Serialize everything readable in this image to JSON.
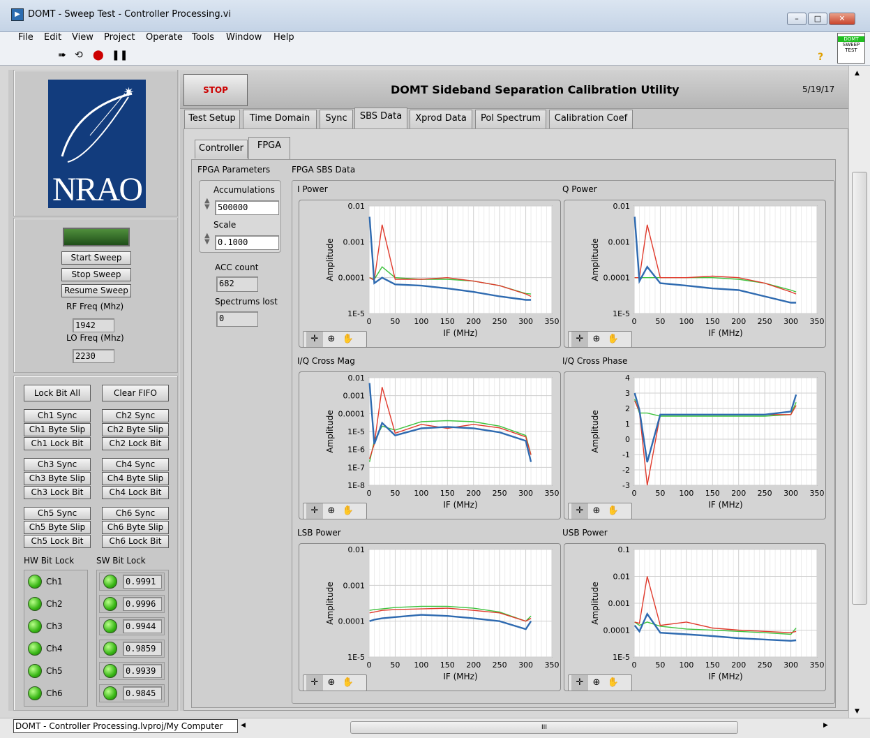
{
  "window": {
    "title": "DOMT - Sweep Test - Controller Processing.vi",
    "controls": [
      "–",
      "□",
      "✕"
    ]
  },
  "menu": [
    "File",
    "Edit",
    "View",
    "Project",
    "Operate",
    "Tools",
    "Window",
    "Help"
  ],
  "toolbar": {
    "icons": [
      "run-arrow-icon",
      "run-continuous-icon",
      "abort-icon",
      "pause-icon"
    ],
    "vi_badge": [
      "DOMT",
      "SWEEP",
      "TEST"
    ],
    "help": "?"
  },
  "header": {
    "stop_label": "STOP",
    "app_title": "DOMT Sideband Separation Calibration Utility",
    "date": "5/19/17"
  },
  "tabs": [
    "Test Setup",
    "Time Domain",
    "Sync",
    "SBS Data",
    "Xprod Data",
    "Pol Spectrum",
    "Calibration Coef"
  ],
  "active_tab": "SBS Data",
  "subtabs": [
    "Controller",
    "FPGA"
  ],
  "active_subtab": "FPGA",
  "logo": {
    "text": "NRAO"
  },
  "sweep": {
    "buttons": [
      "Start Sweep",
      "Stop Sweep",
      "Resume Sweep"
    ],
    "rf_label": "RF Freq (Mhz)",
    "rf_value": "1942",
    "lo_label": "LO Freq (Mhz)",
    "lo_value": "2230"
  },
  "controls": {
    "lock_bit_all": "Lock Bit All",
    "clear_fifo": "Clear FIFO",
    "groups": [
      [
        "Ch1 Sync",
        "Ch1 Byte Slip",
        "Ch1 Lock Bit"
      ],
      [
        "Ch2 Sync",
        "Ch2 Byte Slip",
        "Ch2 Lock Bit"
      ],
      [
        "Ch3 Sync",
        "Ch3 Byte Slip",
        "Ch3 Lock Bit"
      ],
      [
        "Ch4 Sync",
        "Ch4 Byte Slip",
        "Ch4 Lock Bit"
      ],
      [
        "Ch5 Sync",
        "Ch5 Byte Slip",
        "Ch5 Lock Bit"
      ],
      [
        "Ch6 Sync",
        "Ch6 Byte Slip",
        "Ch6 Lock Bit"
      ]
    ],
    "hw_label": "HW Bit Lock",
    "sw_label": "SW Bit Lock",
    "hw_channels": [
      "Ch1",
      "Ch2",
      "Ch3",
      "Ch4",
      "Ch5",
      "Ch6"
    ],
    "sw_values": [
      "0.9991",
      "0.9996",
      "0.9944",
      "0.9859",
      "0.9939",
      "0.9845"
    ]
  },
  "fpga_params": {
    "title": "FPGA Parameters",
    "accum_label": "Accumulations",
    "accum_value": "500000",
    "scale_label": "Scale",
    "scale_value": "0.1000",
    "acc_count_label": "ACC count",
    "acc_count_value": "682",
    "lost_label": "Spectrums lost",
    "lost_value": "0"
  },
  "sbs_title": "FPGA SBS Data",
  "graph_tools": [
    "cursor-icon",
    "zoom-icon",
    "pan-hand-icon"
  ],
  "chart_data": [
    {
      "type": "line",
      "title": "I Power",
      "xlabel": "IF (MHz)",
      "ylabel": "Amplitude",
      "log_y": true,
      "xlim": [
        0,
        350
      ],
      "ylim": [
        1e-05,
        0.01
      ],
      "xticks": [
        "0",
        "50",
        "100",
        "150",
        "200",
        "250",
        "300",
        "350"
      ],
      "yticks": [
        "0.01",
        "0.001",
        "0.0001",
        "1E-5"
      ],
      "x": [
        1,
        10,
        25,
        50,
        100,
        150,
        200,
        250,
        300,
        310
      ],
      "series": [
        {
          "color": "#2e6ab0",
          "values": [
            0.005,
            7e-05,
            0.0001,
            6.5e-05,
            6e-05,
            5e-05,
            4e-05,
            3e-05,
            2.4e-05,
            2.4e-05
          ]
        },
        {
          "color": "#e03a2c",
          "values": [
            0.0001,
            8.5e-05,
            0.003,
            9e-05,
            9e-05,
            0.0001,
            8e-05,
            6e-05,
            3.5e-05,
            3e-05
          ]
        },
        {
          "color": "#3cc23c",
          "values": [
            0.0001,
            9e-05,
            0.0002,
            0.0001,
            9e-05,
            9e-05,
            8e-05,
            6e-05,
            3.6e-05,
            3.5e-05
          ]
        }
      ],
      "grid": true
    },
    {
      "type": "line",
      "title": "Q Power",
      "xlabel": "IF (MHz)",
      "ylabel": "Amplitude",
      "log_y": true,
      "xlim": [
        0,
        350
      ],
      "ylim": [
        1e-05,
        0.01
      ],
      "xticks": [
        "0",
        "50",
        "100",
        "150",
        "200",
        "250",
        "300",
        "350"
      ],
      "yticks": [
        "0.01",
        "0.001",
        "0.0001",
        "1E-5"
      ],
      "x": [
        1,
        10,
        25,
        50,
        100,
        150,
        200,
        250,
        300,
        310
      ],
      "series": [
        {
          "color": "#2e6ab0",
          "values": [
            0.005,
            8e-05,
            0.0002,
            7e-05,
            6e-05,
            5e-05,
            4.5e-05,
            3e-05,
            2e-05,
            2e-05
          ]
        },
        {
          "color": "#e03a2c",
          "values": [
            0.0001,
            0.0001,
            0.003,
            0.0001,
            0.0001,
            0.00011,
            0.0001,
            7e-05,
            4e-05,
            3.5e-05
          ]
        },
        {
          "color": "#3cc23c",
          "values": [
            0.0001,
            0.0001,
            0.0001,
            0.0001,
            0.0001,
            0.0001,
            9e-05,
            7e-05,
            4.5e-05,
            4e-05
          ]
        }
      ],
      "grid": true
    },
    {
      "type": "line",
      "title": "I/Q Cross Mag",
      "xlabel": "IF (MHz)",
      "ylabel": "Amplitude",
      "log_y": true,
      "xlim": [
        0,
        350
      ],
      "ylim": [
        1e-08,
        0.01
      ],
      "xticks": [
        "0",
        "50",
        "100",
        "150",
        "200",
        "250",
        "300",
        "350"
      ],
      "yticks": [
        "0.01",
        "0.001",
        "0.0001",
        "1E-5",
        "1E-6",
        "1E-7",
        "1E-8"
      ],
      "x": [
        1,
        10,
        25,
        50,
        100,
        150,
        200,
        250,
        300,
        310
      ],
      "series": [
        {
          "color": "#2e6ab0",
          "values": [
            0.005,
            2e-06,
            3e-05,
            6e-06,
            1.5e-05,
            1.8e-05,
            1.5e-05,
            9e-06,
            3e-06,
            2e-07
          ]
        },
        {
          "color": "#e03a2c",
          "values": [
            3e-07,
            2e-06,
            0.003,
            8e-06,
            2.5e-05,
            1.5e-05,
            2.5e-05,
            1.6e-05,
            5e-06,
            5e-07
          ]
        },
        {
          "color": "#3cc23c",
          "values": [
            2e-07,
            3e-06,
            2e-05,
            1.2e-05,
            3.5e-05,
            4e-05,
            3.5e-05,
            2e-05,
            6e-06,
            5e-07
          ]
        }
      ],
      "grid": true
    },
    {
      "type": "line",
      "title": "I/Q Cross Phase",
      "xlabel": "IF (MHz)",
      "ylabel": "Amplitude",
      "log_y": false,
      "xlim": [
        0,
        350
      ],
      "ylim": [
        -3,
        4
      ],
      "xticks": [
        "0",
        "50",
        "100",
        "150",
        "200",
        "250",
        "300",
        "350"
      ],
      "yticks": [
        "4",
        "3",
        "2",
        "1",
        "0",
        "-1",
        "-2",
        "-3"
      ],
      "x": [
        1,
        10,
        25,
        50,
        100,
        150,
        200,
        250,
        300,
        310
      ],
      "series": [
        {
          "color": "#2e6ab0",
          "values": [
            3,
            1.9,
            -1.5,
            1.6,
            1.6,
            1.6,
            1.6,
            1.6,
            1.8,
            2.9
          ]
        },
        {
          "color": "#e03a2c",
          "values": [
            2.5,
            1.8,
            -3,
            1.6,
            1.6,
            1.6,
            1.6,
            1.6,
            1.6,
            2.2
          ]
        },
        {
          "color": "#3cc23c",
          "values": [
            2.6,
            1.7,
            1.7,
            1.5,
            1.5,
            1.5,
            1.5,
            1.5,
            1.6,
            2.4
          ]
        }
      ],
      "grid": true
    },
    {
      "type": "line",
      "title": "LSB Power",
      "xlabel": "IF (MHz)",
      "ylabel": "Amplitude",
      "log_y": true,
      "xlim": [
        0,
        350
      ],
      "ylim": [
        1e-05,
        0.01
      ],
      "xticks": [
        "0",
        "50",
        "100",
        "150",
        "200",
        "250",
        "300",
        "350"
      ],
      "yticks": [
        "0.01",
        "0.001",
        "0.0001",
        "1E-5"
      ],
      "x": [
        1,
        10,
        25,
        50,
        100,
        150,
        200,
        250,
        300,
        310
      ],
      "series": [
        {
          "color": "#2e6ab0",
          "values": [
            0.0001,
            0.00011,
            0.00012,
            0.00013,
            0.00015,
            0.00014,
            0.00012,
            0.0001,
            6e-05,
            0.0001
          ]
        },
        {
          "color": "#e03a2c",
          "values": [
            0.00017,
            0.00018,
            0.0002,
            0.00021,
            0.00022,
            0.00023,
            0.0002,
            0.00017,
            0.0001,
            0.00012
          ]
        },
        {
          "color": "#3cc23c",
          "values": [
            0.0002,
            0.00021,
            0.00022,
            0.00024,
            0.00026,
            0.00026,
            0.00023,
            0.00018,
            0.0001,
            0.00014
          ]
        }
      ],
      "grid": true
    },
    {
      "type": "line",
      "title": "USB Power",
      "xlabel": "IF (MHz)",
      "ylabel": "Amplitude",
      "log_y": true,
      "xlim": [
        0,
        350
      ],
      "ylim": [
        1e-05,
        0.1
      ],
      "xticks": [
        "0",
        "50",
        "100",
        "150",
        "200",
        "250",
        "300",
        "350"
      ],
      "yticks": [
        "0.1",
        "0.01",
        "0.001",
        "0.0001",
        "1E-5"
      ],
      "x": [
        1,
        10,
        25,
        50,
        100,
        150,
        200,
        250,
        300,
        310
      ],
      "series": [
        {
          "color": "#2e6ab0",
          "values": [
            0.00015,
            9e-05,
            0.0004,
            8e-05,
            7e-05,
            6e-05,
            5e-05,
            4.5e-05,
            4e-05,
            4.2e-05
          ]
        },
        {
          "color": "#e03a2c",
          "values": [
            0.0002,
            0.00018,
            0.01,
            0.00015,
            0.0002,
            0.00012,
            0.0001,
            9e-05,
            8e-05,
            9e-05
          ]
        },
        {
          "color": "#3cc23c",
          "values": [
            0.0002,
            0.00015,
            0.0002,
            0.00014,
            0.00011,
            0.0001,
            9e-05,
            8e-05,
            7e-05,
            0.00012
          ]
        }
      ],
      "grid": true
    }
  ],
  "statusbar": {
    "path": "DOMT - Controller Processing.lvproj/My Computer",
    "grip": "III"
  }
}
